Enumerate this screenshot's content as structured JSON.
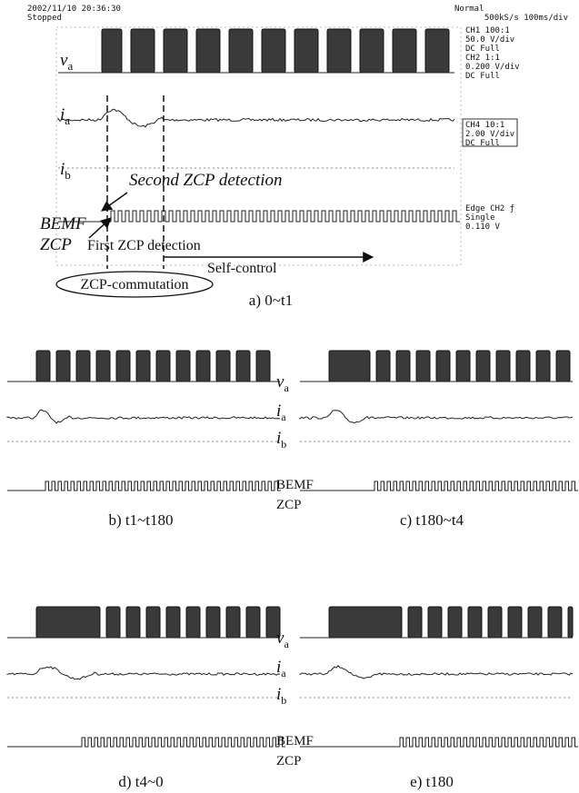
{
  "panel_a": {
    "header": {
      "timestamp": "2002/11/10 20:36:30",
      "status": "Stopped",
      "mode": "Normal",
      "rate": "500kS/s 100ms/div"
    },
    "settings": [
      "CH1 100:1",
      "50.0 V/div",
      "DC  Full",
      "CH2 1:1",
      "0.200 V/div",
      "DC  Full"
    ],
    "settings_box": [
      "CH4 10:1",
      "2.00 V/div",
      "DC  Full"
    ],
    "trigger": [
      "Edge CH2 ƒ",
      "Single",
      "0.110 V"
    ],
    "va": {
      "sym": "v",
      "sub": "a"
    },
    "ia": {
      "sym": "i",
      "sub": "a"
    },
    "ib": {
      "sym": "i",
      "sub": "b"
    },
    "second_zcp": "Second ZCP detection",
    "bemf": "BEMF",
    "zcp": "ZCP",
    "first_zcp": "First ZCP detection",
    "self_control": "Self-control",
    "zcp_commutation": "ZCP-commutation",
    "caption": "a) 0~t1"
  },
  "panel_b": {
    "va": {
      "sym": "v",
      "sub": "a"
    },
    "ia": {
      "sym": "i",
      "sub": "a"
    },
    "ib": {
      "sym": "i",
      "sub": "b"
    },
    "bemf": "BEMF",
    "zcp": "ZCP",
    "caption": "b) t1~t180"
  },
  "panel_c": {
    "caption": "c) t180~t4"
  },
  "panel_d": {
    "va": {
      "sym": "v",
      "sub": "a"
    },
    "ia": {
      "sym": "i",
      "sub": "a"
    },
    "ib": {
      "sym": "i",
      "sub": "b"
    },
    "bemf": "BEMF",
    "zcp": "ZCP",
    "caption": "d) t4~0"
  },
  "panel_e": {
    "caption": "e) t180"
  }
}
